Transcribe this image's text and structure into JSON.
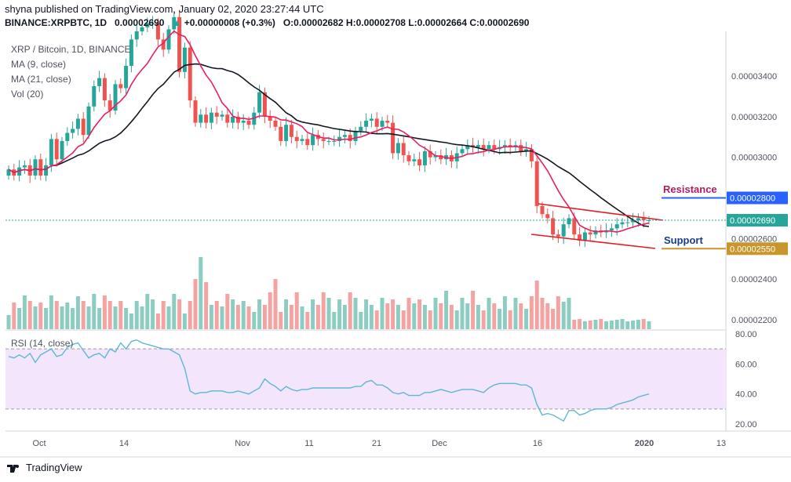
{
  "header": {
    "line1": "shyna published on TradingView.com, January 02, 2020 23:27:44 UTC",
    "symbol": "BINANCE:XRPBTC, 1D",
    "price": "0.00002690",
    "change": "+0.00000008 (+0.3%)",
    "ohlc": "O:0.00002682 H:0.00002708 L:0.00002664 C:0.00002690"
  },
  "legend": {
    "title": "XRP / Bitcoin, 1D, BINANCE",
    "ma9": "MA (9, close)",
    "ma21": "MA (21, close)",
    "vol": "Vol (20)"
  },
  "annotations": {
    "resistance": "Resistance",
    "support": "Support",
    "resistance_price": "0.00002800",
    "support_price": "0.00002550",
    "last_price": "0.00002690"
  },
  "footer": {
    "brand": "TradingView"
  },
  "chart_data": [
    {
      "type": "candlestick",
      "title": "XRP / Bitcoin, 1D, BINANCE",
      "y_axis_ticks": [
        "0.00003400",
        "0.00003200",
        "0.00003000",
        "0.00002600",
        "0.00002400",
        "0.00002200"
      ],
      "x_axis_ticks": [
        "Oct",
        "14",
        "Nov",
        "11",
        "21",
        "Dec",
        "16",
        "2020",
        "13"
      ],
      "ylim": [
        2.11e-05,
        3.56e-05
      ],
      "last_price": 2.69e-05,
      "resistance_level": 2.8e-05,
      "support_level": 2.55e-05,
      "colors": {
        "up": "#26a69a",
        "down": "#ef5350",
        "ma9": "#e91e63",
        "ma21": "#131722",
        "trendline": "#e31b23",
        "resistance_label": "#b11c5e",
        "support_label": "#1a3c8c",
        "resistance_box": "#2962ff",
        "support_box": "#c9962b",
        "last_price_box": "#26a69a"
      },
      "close": [
        2.94e-05,
        2.91e-05,
        2.95e-05,
        2.96e-05,
        2.91e-05,
        2.99e-05,
        2.91e-05,
        2.96e-05,
        3.09e-05,
        2.99e-05,
        3.08e-05,
        3.12e-05,
        3.14e-05,
        3.19e-05,
        3.11e-05,
        3.25e-05,
        3.35e-05,
        3.39e-05,
        3.28e-05,
        3.23e-05,
        3.36e-05,
        3.34e-05,
        3.45e-05,
        3.58e-05,
        3.62e-05,
        3.64e-05,
        3.66e-05,
        3.66e-05,
        3.58e-05,
        3.53e-05,
        3.63e-05,
        3.69e-05,
        3.42e-05,
        3.54e-05,
        3.28e-05,
        3.17e-05,
        3.21e-05,
        3.17e-05,
        3.22e-05,
        3.2e-05,
        3.21e-05,
        3.17e-05,
        3.2e-05,
        3.17e-05,
        3.18e-05,
        3.16e-05,
        3.22e-05,
        3.32e-05,
        3.2e-05,
        3.18e-05,
        3.15e-05,
        3.08e-05,
        3.16e-05,
        3.1e-05,
        3.08e-05,
        3.09e-05,
        3.06e-05,
        3.11e-05,
        3.09e-05,
        3.08e-05,
        3.08e-05,
        3.08e-05,
        3.1e-05,
        3.11e-05,
        3.08e-05,
        3.13e-05,
        3.15e-05,
        3.18e-05,
        3.19e-05,
        3.15e-05,
        3.18e-05,
        3.17e-05,
        3.02e-05,
        3.07e-05,
        3.01e-05,
        2.98e-05,
        2.99e-05,
        2.96e-05,
        3.03e-05,
        3e-05,
        3.01e-05,
        2.99e-05,
        3.01e-05,
        2.98e-05,
        3.02e-05,
        3.04e-05,
        3.06e-05,
        3.05e-05,
        3.06e-05,
        3.04e-05,
        3.06e-05,
        3.04e-05,
        3.05e-05,
        3.06e-05,
        3.05e-05,
        3.06e-05,
        3.03e-05,
        3.04e-05,
        2.98e-05,
        2.76e-05,
        2.72e-05,
        2.7e-05,
        2.62e-05,
        2.61e-05,
        2.67e-05,
        2.7e-05,
        2.62e-05,
        2.59e-05,
        2.63e-05,
        2.62e-05,
        2.64e-05,
        2.63e-05,
        2.64e-05,
        2.65e-05,
        2.67e-05,
        2.68e-05,
        2.68e-05,
        2.69e-05,
        2.7e-05,
        2.69e-05,
        2.69e-05
      ]
    },
    {
      "type": "line",
      "title": "RSI (14, close)",
      "y_axis_ticks": [
        "80.00",
        "60.00",
        "40.00",
        "20.00"
      ],
      "ylim": [
        16,
        81
      ],
      "bands": [
        30,
        70
      ],
      "values": [
        65,
        64,
        66,
        64,
        67,
        61,
        66,
        68,
        70,
        65,
        66,
        71,
        73,
        74,
        69,
        64,
        66,
        67,
        64,
        70,
        68,
        74,
        70,
        75,
        76,
        74,
        73,
        72,
        71,
        70,
        70,
        68,
        66,
        57,
        42,
        40,
        41,
        41,
        42,
        42,
        42,
        41,
        41,
        42,
        41,
        40,
        42,
        44,
        50,
        47,
        45,
        42,
        45,
        43,
        42,
        43,
        43,
        44,
        44,
        44,
        44,
        44,
        44,
        44,
        44,
        45,
        45,
        48,
        49,
        46,
        46,
        44,
        41,
        40,
        41,
        39,
        39,
        39,
        41,
        41,
        42,
        43,
        42,
        41,
        42,
        43,
        43,
        43,
        42,
        41,
        44,
        46,
        47,
        47,
        47,
        47,
        46,
        46,
        44,
        33,
        26,
        27,
        26,
        24,
        22,
        29,
        29,
        26,
        27,
        29,
        30,
        30,
        30,
        31,
        33,
        34,
        35,
        36,
        38,
        39,
        40
      ]
    }
  ]
}
